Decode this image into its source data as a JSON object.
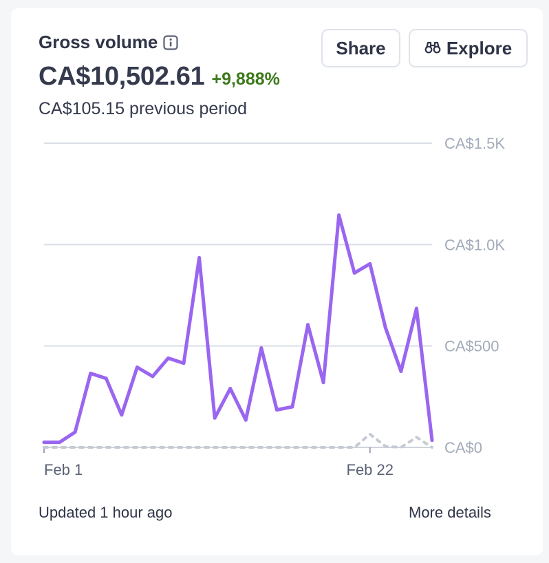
{
  "widget": {
    "title": "Gross volume",
    "amount": "CA$10,502.61",
    "delta": "+9,888%",
    "previous": "CA$105.15 previous period",
    "share_label": "Share",
    "explore_label": "Explore",
    "updated": "Updated 1 hour ago",
    "more_details": "More details"
  },
  "colors": {
    "current_series": "#9a66f0",
    "previous_series": "#c6cad3",
    "gridline": "#d9dee7",
    "axis_label": "#a3abb9",
    "delta_positive": "#3d7a1c"
  },
  "icons": {
    "info": "info-icon",
    "explore": "binoculars-icon"
  },
  "chart_data": {
    "type": "line",
    "title": "",
    "xlabel": "",
    "ylabel": "",
    "ylim": [
      0,
      1500
    ],
    "yticks": [
      0,
      500,
      1000,
      1500
    ],
    "ytick_labels": [
      "CA$0",
      "CA$500",
      "CA$1.0K",
      "CA$1.5K"
    ],
    "x_tick_labels": [
      "Feb 1",
      "Feb 22"
    ],
    "x_tick_days": [
      1,
      22
    ],
    "x": [
      1,
      2,
      3,
      4,
      5,
      6,
      7,
      8,
      9,
      10,
      11,
      12,
      13,
      14,
      15,
      16,
      17,
      18,
      19,
      20,
      21,
      22,
      23,
      24,
      25,
      26
    ],
    "grid": true,
    "series": [
      {
        "role": "current period",
        "style": "solid",
        "values": [
          25,
          25,
          75,
          365,
          340,
          160,
          395,
          350,
          440,
          415,
          935,
          145,
          290,
          135,
          490,
          185,
          200,
          605,
          320,
          1145,
          860,
          905,
          590,
          375,
          685,
          35
        ]
      },
      {
        "role": "previous period",
        "style": "dotted",
        "values": [
          0,
          0,
          0,
          0,
          0,
          0,
          0,
          0,
          0,
          0,
          0,
          0,
          0,
          0,
          0,
          0,
          0,
          0,
          0,
          0,
          0,
          65,
          5,
          0,
          50,
          0
        ]
      }
    ]
  }
}
